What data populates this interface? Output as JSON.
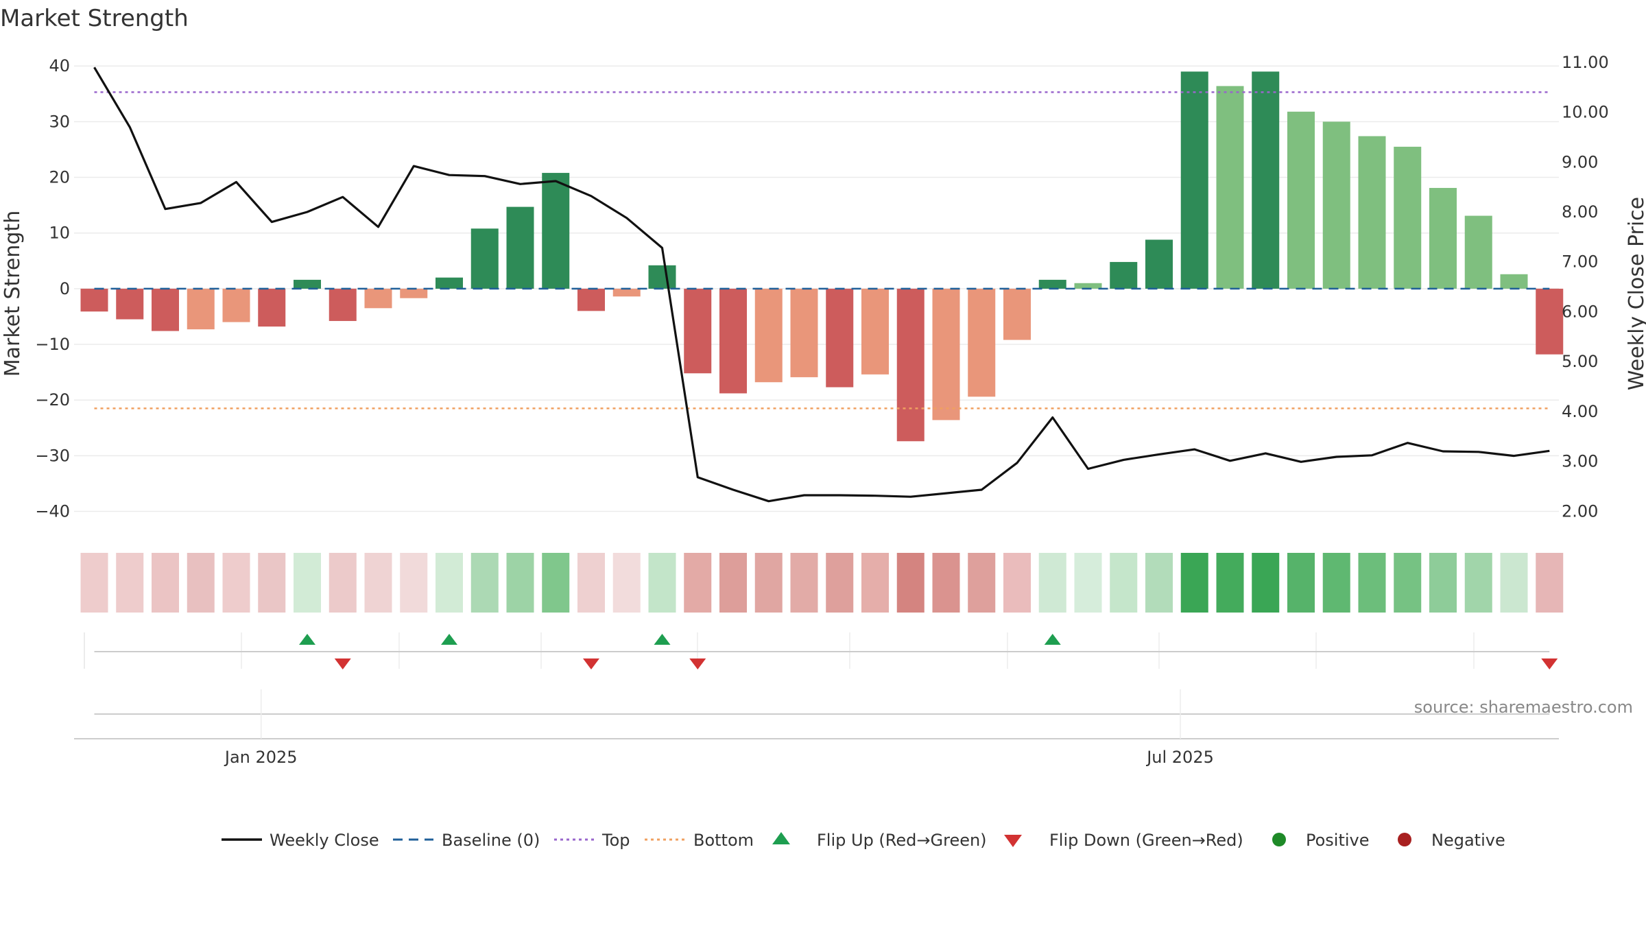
{
  "title": "Market Strength",
  "source": "source: sharemaestro.com",
  "chart_data": {
    "type": "bar",
    "title": "Market Strength",
    "ylabel": "Market Strength",
    "y2label": "Weekly Close Price",
    "ylim": [
      -44,
      42
    ],
    "y2lim": [
      1.55,
      11.15
    ],
    "yticks": [
      -40,
      -30,
      -20,
      -10,
      0,
      10,
      20,
      30,
      40
    ],
    "y2ticks": [
      2.0,
      3.0,
      4.0,
      5.0,
      6.0,
      7.0,
      8.0,
      9.0,
      10.0,
      11.0
    ],
    "xtick_labels": [
      {
        "label": "Jan 2025",
        "week_index": 4.7
      },
      {
        "label": "Jul 2025",
        "week_index": 30.6
      }
    ],
    "top_level": 35.3,
    "bottom_level": -21.5,
    "baseline": 0,
    "grid": true,
    "legend_position": "bottom",
    "strength": [
      -4.1,
      -5.5,
      -7.6,
      -7.3,
      -6.0,
      -6.8,
      1.6,
      -5.8,
      -3.5,
      -1.7,
      2.0,
      10.8,
      14.7,
      20.8,
      -4.0,
      -1.4,
      4.2,
      -15.2,
      -18.8,
      -16.8,
      -15.9,
      -17.7,
      -15.4,
      -27.4,
      -23.6,
      -19.4,
      -9.2,
      1.6,
      1.0,
      4.8,
      8.8,
      39.0,
      36.4,
      39.0,
      31.8,
      30.0,
      27.4,
      25.5,
      18.1,
      13.1,
      2.6,
      -11.8
    ],
    "bar_colors": [
      "#cd5c5c",
      "#cd5c5c",
      "#cd5c5c",
      "#e9967a",
      "#e9967a",
      "#cd5c5c",
      "#2e8b57",
      "#cd5c5c",
      "#e9967a",
      "#e9967a",
      "#2e8b57",
      "#2e8b57",
      "#2e8b57",
      "#2e8b57",
      "#cd5c5c",
      "#e9967a",
      "#2e8b57",
      "#cd5c5c",
      "#cd5c5c",
      "#e9967a",
      "#e9967a",
      "#cd5c5c",
      "#e9967a",
      "#cd5c5c",
      "#e9967a",
      "#e9967a",
      "#e9967a",
      "#2e8b57",
      "#7fbf7f",
      "#2e8b57",
      "#2e8b57",
      "#2e8b57",
      "#7fbf7f",
      "#2e8b57",
      "#7fbf7f",
      "#7fbf7f",
      "#7fbf7f",
      "#7fbf7f",
      "#7fbf7f",
      "#7fbf7f",
      "#7fbf7f",
      "#cd5c5c"
    ],
    "weekly_close": [
      10.9,
      9.7,
      8.06,
      8.18,
      8.6,
      7.8,
      8.0,
      8.3,
      7.7,
      8.92,
      8.74,
      8.72,
      8.56,
      8.62,
      8.32,
      7.88,
      7.28,
      2.68,
      2.43,
      2.2,
      2.32,
      2.32,
      2.31,
      2.29,
      2.36,
      2.43,
      2.97,
      3.88,
      2.85,
      3.03,
      3.14,
      3.24,
      3.01,
      3.16,
      2.99,
      3.09,
      3.12,
      3.37,
      3.2,
      3.19,
      3.11,
      3.21
    ],
    "heat_colors": [
      "#eecccc",
      "#eecccc",
      "#ebc4c4",
      "#e8c0c0",
      "#eecccc",
      "#eac6c6",
      "#d2ebd6",
      "#eccaca",
      "#efd3d3",
      "#f1dada",
      "#d2ebd6",
      "#acd9b4",
      "#9dd3a6",
      "#80c78c",
      "#eed0d0",
      "#f2dcdc",
      "#c3e5c9",
      "#e3aaa6",
      "#dd9e9a",
      "#e0a6a2",
      "#e2aba7",
      "#dea09c",
      "#e5aeaa",
      "#d48480",
      "#da938f",
      "#dea09c",
      "#eabcbc",
      "#cfe9d4",
      "#d6eddb",
      "#c5e6cb",
      "#b2dcba",
      "#3aa655",
      "#44ab5c",
      "#3aa655",
      "#56b36a",
      "#5fb871",
      "#6cbe7b",
      "#76c283",
      "#8ecc99",
      "#a1d5aa",
      "#cbe7d0",
      "#e6b6b6"
    ],
    "flip_up_weeks": [
      6,
      10,
      16,
      27
    ],
    "flip_down_weeks": [
      7,
      14,
      17,
      41
    ]
  },
  "legend": {
    "weekly_close": "Weekly Close",
    "baseline": "Baseline (0)",
    "top": "Top",
    "bottom": "Bottom",
    "flip_up": "Flip Up (Red→Green)",
    "flip_down": "Flip Down (Green→Red)",
    "positive": "Positive",
    "negative": "Negative"
  },
  "colors": {
    "line": "#111111",
    "baseline": "#1f5f99",
    "top": "#9966cc",
    "bottom": "#f0a060",
    "flip_up": "#1e9e50",
    "flip_down": "#d23232",
    "positive": "#1e8a28",
    "negative": "#a82020",
    "grid": "#ebebeb"
  }
}
